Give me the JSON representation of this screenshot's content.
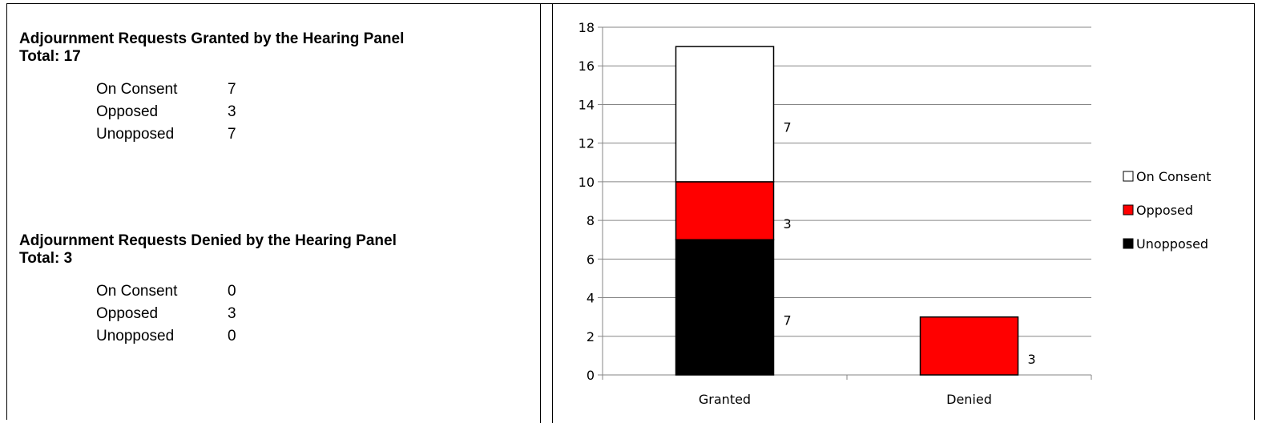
{
  "granted": {
    "title": "Adjournment Requests Granted by the Hearing Panel",
    "total": "Total: 17",
    "rows": [
      {
        "label": "On Consent",
        "value": "7"
      },
      {
        "label": "Opposed",
        "value": "3"
      },
      {
        "label": "Unopposed",
        "value": "7"
      }
    ]
  },
  "denied": {
    "title": "Adjournment Requests Denied by the Hearing Panel",
    "total": "Total: 3",
    "rows": [
      {
        "label": "On Consent",
        "value": "0"
      },
      {
        "label": "Opposed",
        "value": "3"
      },
      {
        "label": "Unopposed",
        "value": "0"
      }
    ]
  },
  "chart_data": {
    "type": "bar",
    "stacked": true,
    "categories": [
      "Granted",
      "Denied"
    ],
    "series": [
      {
        "name": "Unopposed",
        "values": [
          7,
          0
        ],
        "color": "#000000"
      },
      {
        "name": "Opposed",
        "values": [
          3,
          3
        ],
        "color": "#ff0000"
      },
      {
        "name": "On Consent",
        "values": [
          7,
          0
        ],
        "color": "#ffffff"
      }
    ],
    "legend_order": [
      "On Consent",
      "Opposed",
      "Unopposed"
    ],
    "legend_position": "right",
    "ylim": [
      0,
      18
    ],
    "yticks": [
      0,
      2,
      4,
      6,
      8,
      10,
      12,
      14,
      16,
      18
    ],
    "grid": true
  }
}
